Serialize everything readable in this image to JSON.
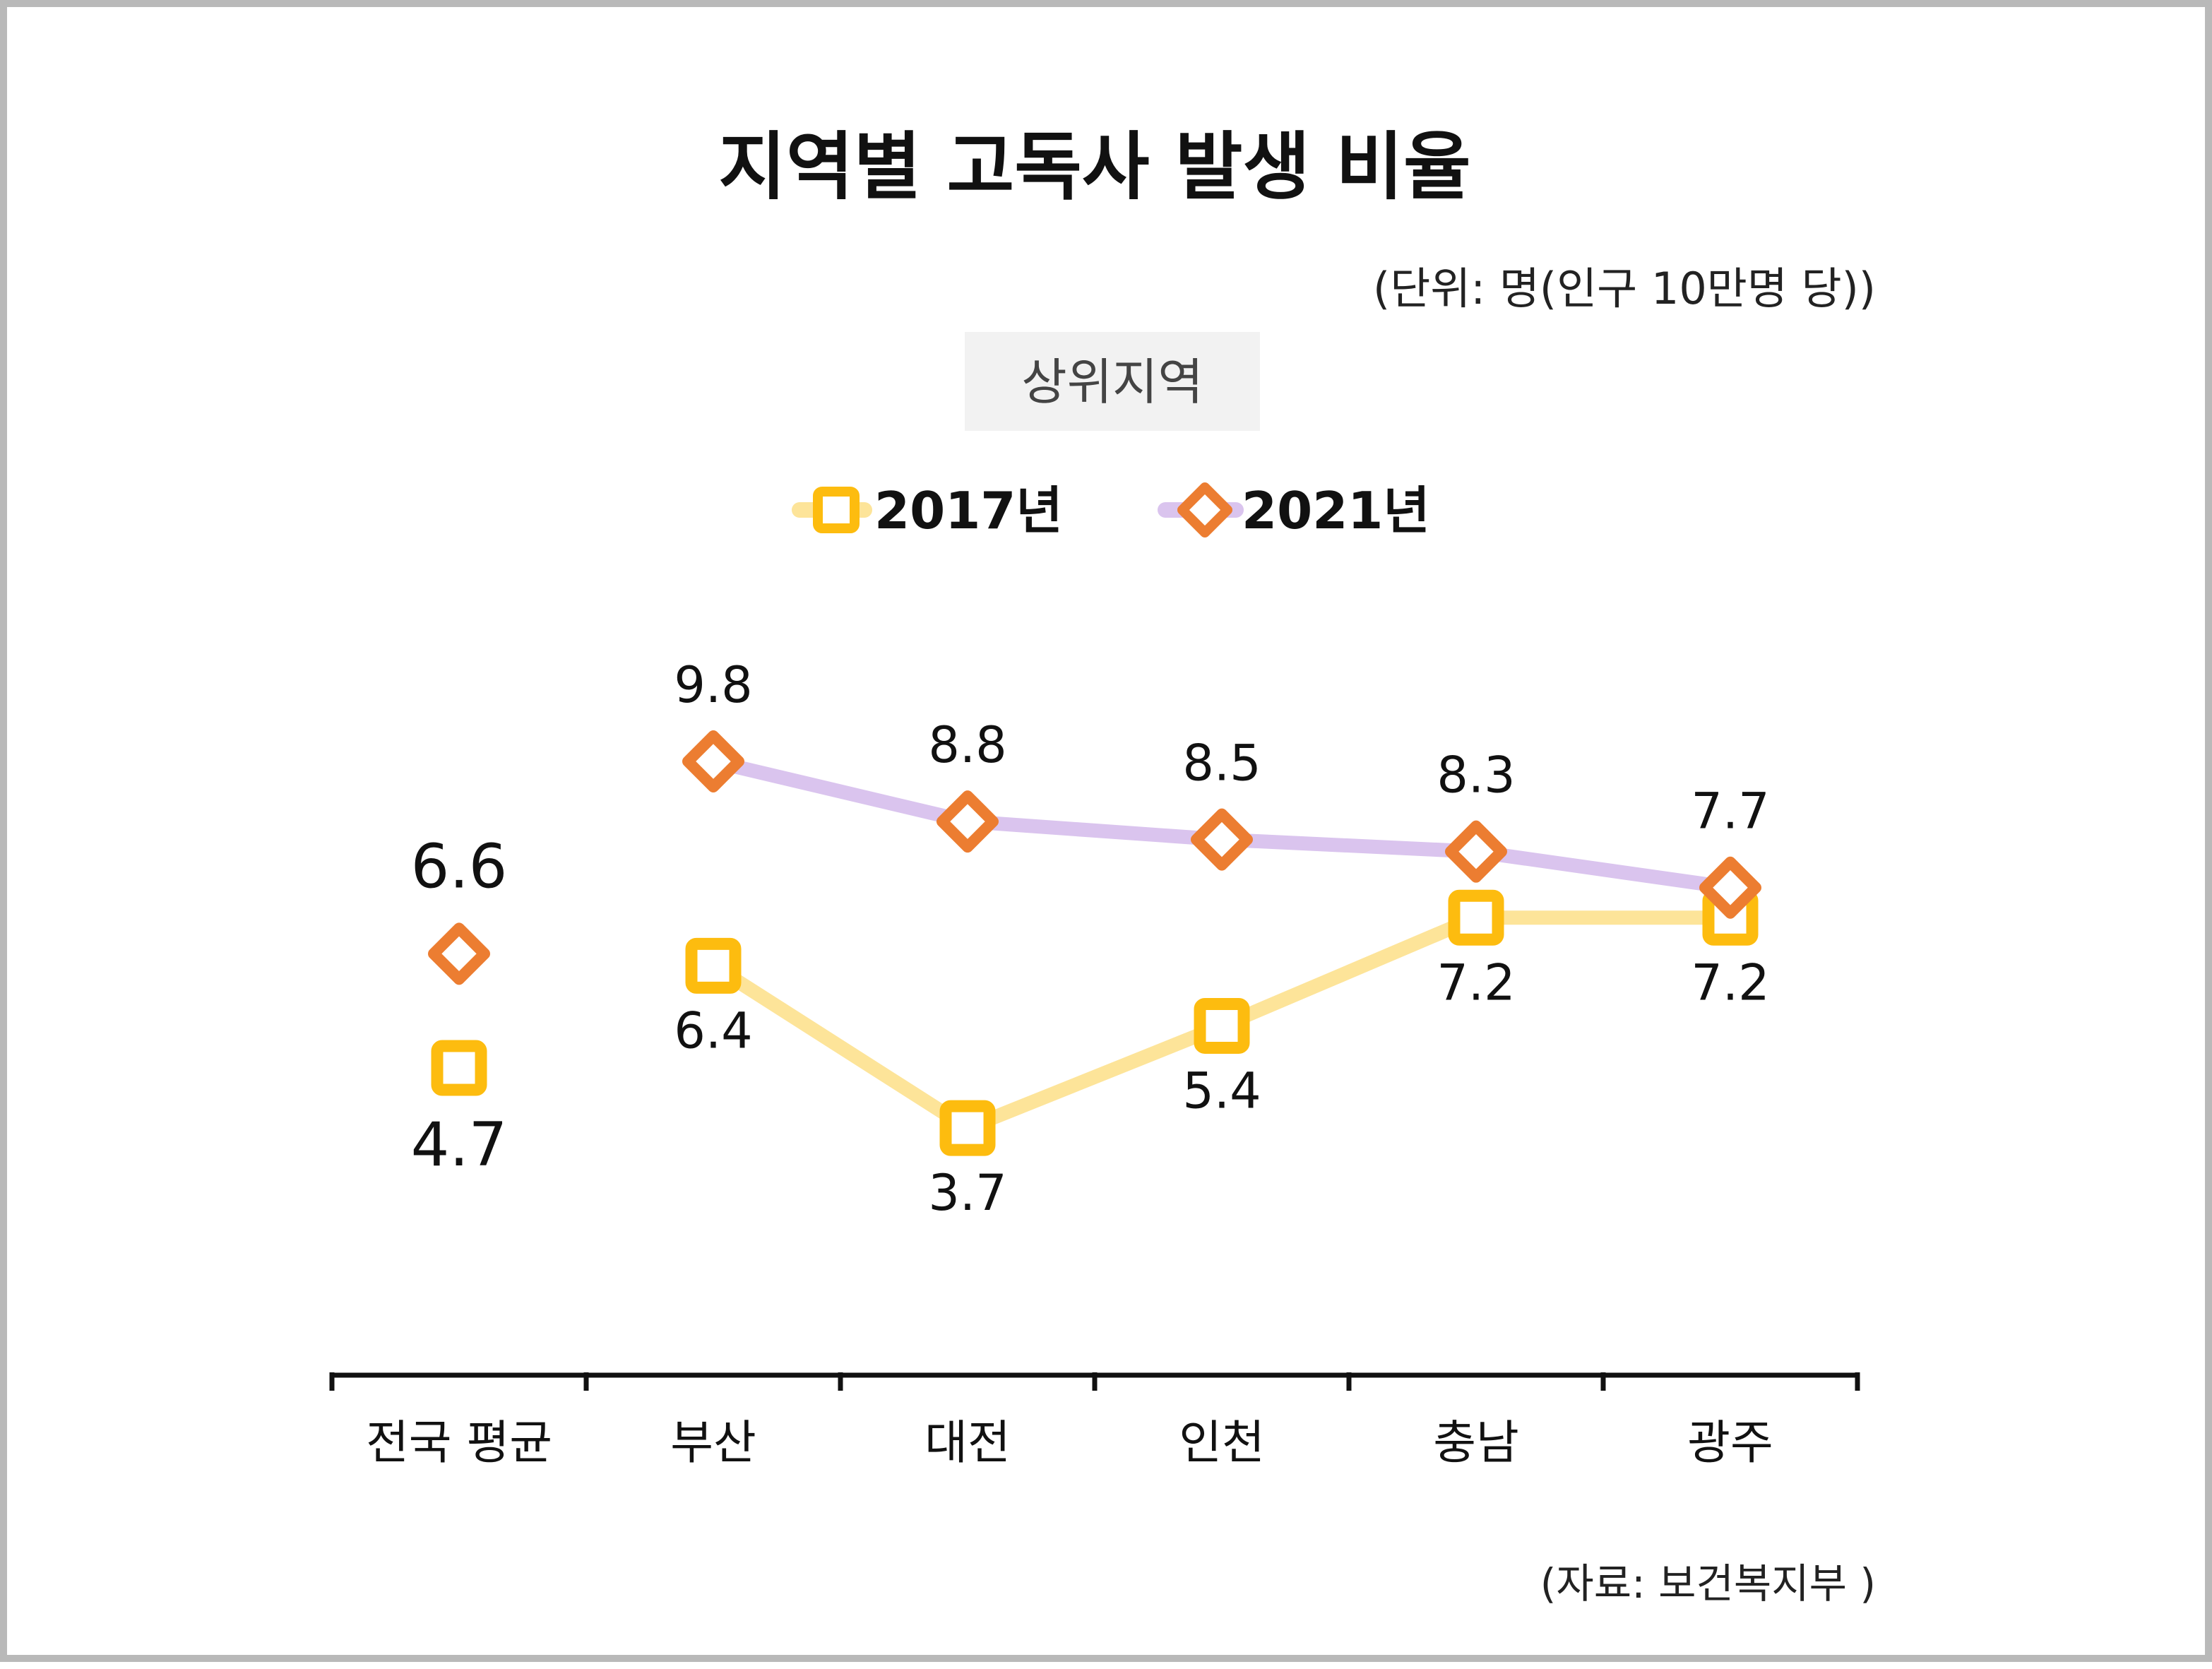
{
  "chart_data": {
    "type": "line",
    "title": "지역별 고독사 발생 비율",
    "unit_note": "(단위: 명(인구 10만명 당))",
    "subtitle": "상위지역",
    "source": "(자료: 보건복지부 )",
    "categories": [
      "전국 평균",
      "부산",
      "대전",
      "인천",
      "충남",
      "광주"
    ],
    "ylim": [
      0,
      11
    ],
    "grid": false,
    "legend_position": "top-center",
    "series": [
      {
        "name": "2017년",
        "values": [
          4.7,
          6.4,
          3.7,
          5.4,
          7.2,
          7.2
        ],
        "labels": [
          "4.7",
          "6.4",
          "3.7",
          "5.4",
          "7.2",
          "7.2"
        ],
        "line_color": "#fde499",
        "marker": "square",
        "marker_color": "#fdbc0f",
        "label_position": "below"
      },
      {
        "name": "2021년",
        "values": [
          6.6,
          9.8,
          8.8,
          8.5,
          8.3,
          7.7
        ],
        "labels": [
          "6.6",
          "9.8",
          "8.8",
          "8.5",
          "8.3",
          "7.7"
        ],
        "line_color": "#dac4ee",
        "marker": "diamond",
        "marker_color": "#ec7d31",
        "label_position": "above"
      }
    ]
  }
}
